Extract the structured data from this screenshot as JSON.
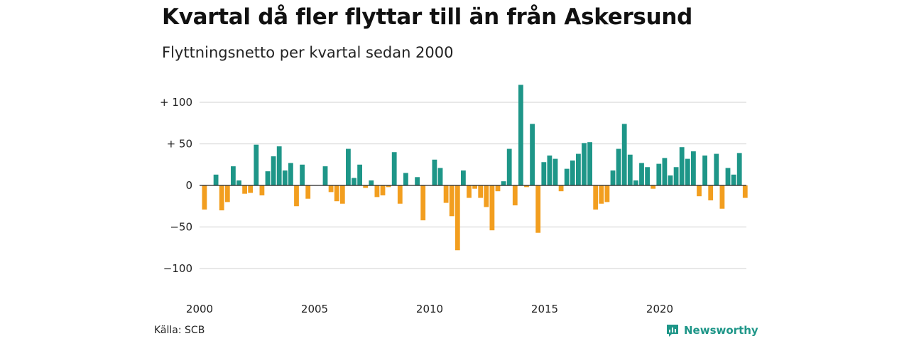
{
  "header": {
    "title": "Kvartal då fler flyttar till än från Askersund",
    "subtitle": "Flyttningsnetto per kvartal sedan 2000"
  },
  "footer": {
    "source": "Källa: SCB",
    "brand": "Newsworthy"
  },
  "colors": {
    "positive": "#1e9688",
    "negative": "#f29e1f",
    "grid": "#d9d9d9",
    "zero_line": "#222222"
  },
  "chart_data": {
    "type": "bar",
    "title": "Kvartal då fler flyttar till än från Askersund",
    "subtitle": "Flyttningsnetto per kvartal sedan 2000",
    "xlabel": "",
    "ylabel": "",
    "grid": true,
    "ylim": [
      -110,
      125
    ],
    "y_ticks": [
      {
        "value": 100,
        "label": "+ 100"
      },
      {
        "value": 50,
        "label": "+  50"
      },
      {
        "value": 0,
        "label": "0"
      },
      {
        "value": -50,
        "label": "−50"
      },
      {
        "value": -100,
        "label": "−100"
      }
    ],
    "x_ticks": [
      {
        "year": 2000,
        "label": "2000"
      },
      {
        "year": 2005,
        "label": "2005"
      },
      {
        "year": 2010,
        "label": "2010"
      },
      {
        "year": 2015,
        "label": "2015"
      },
      {
        "year": 2020,
        "label": "2020"
      }
    ],
    "start_year": 2000,
    "values": [
      -29,
      0,
      13,
      -30,
      -20,
      23,
      6,
      -10,
      -9,
      49,
      -12,
      17,
      35,
      47,
      18,
      27,
      -25,
      25,
      -16,
      0,
      0,
      23,
      -8,
      -19,
      -22,
      44,
      9,
      25,
      -3,
      6,
      -14,
      -12,
      -2,
      40,
      -22,
      15,
      0,
      10,
      -42,
      0,
      31,
      21,
      -21,
      -37,
      -78,
      18,
      -15,
      -4,
      -15,
      -26,
      -54,
      -7,
      5,
      44,
      -24,
      121,
      -2,
      74,
      -57,
      28,
      36,
      32,
      -7,
      20,
      30,
      38,
      51,
      52,
      -29,
      -22,
      -20,
      18,
      44,
      74,
      37,
      6,
      27,
      22,
      -4,
      26,
      33,
      12,
      22,
      46,
      32,
      41,
      -13,
      36,
      -18,
      38,
      -28,
      21,
      13,
      39,
      -15
    ]
  }
}
